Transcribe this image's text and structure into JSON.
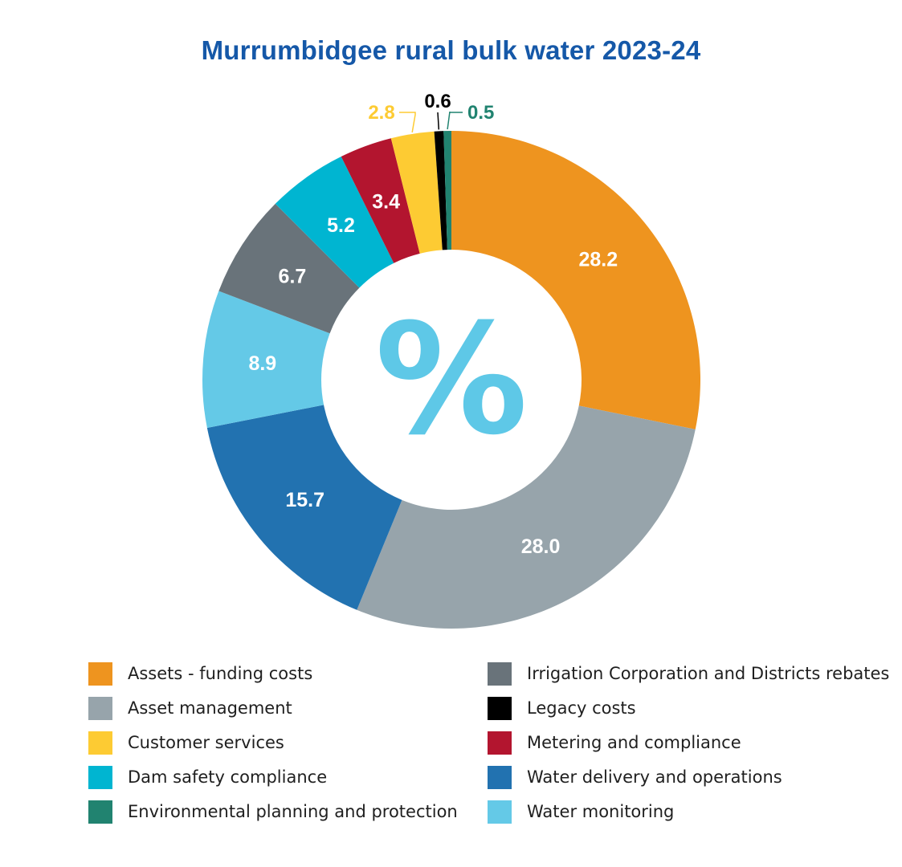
{
  "chart_data": {
    "type": "pie",
    "title": "Murrumbidgee rural bulk water 2023-24",
    "center_symbol": "%",
    "colors": {
      "title": "#1558a8",
      "percent_symbol": "#5ec8e7"
    },
    "slices": [
      {
        "label": "Assets - funding costs",
        "value": 28.2,
        "value_label": "28.2",
        "color": "#ee941f",
        "label_color": "#ffffff",
        "callout": false
      },
      {
        "label": "Asset management",
        "value": 28.0,
        "value_label": "28.0",
        "color": "#97a4ab",
        "label_color": "#ffffff",
        "callout": false
      },
      {
        "label": "Water delivery and operations",
        "value": 15.7,
        "value_label": "15.7",
        "color": "#2272b0",
        "label_color": "#ffffff",
        "callout": false
      },
      {
        "label": "Water monitoring",
        "value": 8.9,
        "value_label": "8.9",
        "color": "#64c9e7",
        "label_color": "#ffffff",
        "callout": false
      },
      {
        "label": "Irrigation Corporation and Districts rebates",
        "value": 6.7,
        "value_label": "6.7",
        "color": "#69737a",
        "label_color": "#ffffff",
        "callout": false
      },
      {
        "label": "Dam safety compliance",
        "value": 5.2,
        "value_label": "5.2",
        "color": "#00b5d1",
        "label_color": "#ffffff",
        "callout": false
      },
      {
        "label": "Metering and compliance",
        "value": 3.4,
        "value_label": "3.4",
        "color": "#b3152f",
        "label_color": "#ffffff",
        "callout": false
      },
      {
        "label": "Customer services",
        "value": 2.8,
        "value_label": "2.8",
        "color": "#fdcb33",
        "label_color": "#fdcb33",
        "callout": true
      },
      {
        "label": "Legacy costs",
        "value": 0.6,
        "value_label": "0.6",
        "color": "#000000",
        "label_color": "#000000",
        "callout": true
      },
      {
        "label": "Environmental planning and protection",
        "value": 0.5,
        "value_label": "0.5",
        "color": "#218370",
        "label_color": "#218370",
        "callout": true
      }
    ],
    "legend": {
      "placement": "bottom",
      "columns": [
        [
          {
            "label": "Assets - funding costs",
            "color": "#ee941f"
          },
          {
            "label": "Asset management",
            "color": "#97a4ab"
          },
          {
            "label": "Customer services",
            "color": "#fdcb33"
          },
          {
            "label": "Dam safety compliance",
            "color": "#00b5d1"
          },
          {
            "label": "Environmental planning and protection",
            "color": "#218370"
          }
        ],
        [
          {
            "label": "Irrigation Corporation and Districts rebates",
            "color": "#69737a"
          },
          {
            "label": "Legacy costs",
            "color": "#000000"
          },
          {
            "label": "Metering and compliance",
            "color": "#b3152f"
          },
          {
            "label": "Water delivery and operations",
            "color": "#2272b0"
          },
          {
            "label": "Water monitoring",
            "color": "#64c9e7"
          }
        ]
      ]
    }
  }
}
